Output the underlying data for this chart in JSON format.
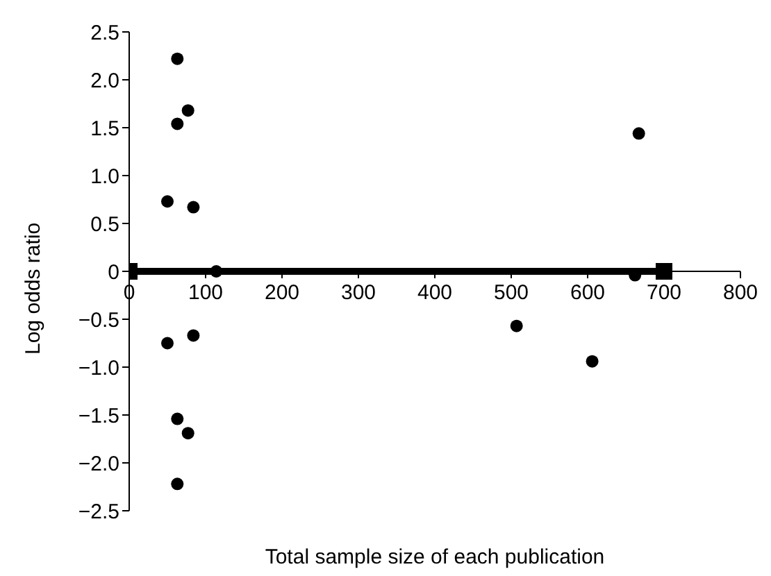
{
  "chart_data": {
    "type": "scatter",
    "xlabel": "Total sample size of each publication",
    "ylabel": "Log odds ratio",
    "xlim": [
      0,
      800
    ],
    "xticks": [
      0,
      100,
      200,
      300,
      400,
      500,
      600,
      700,
      800
    ],
    "ylim": [
      -2.5,
      2.5
    ],
    "yticks": [
      {
        "value": -2.5,
        "label": "−2.5"
      },
      {
        "value": -2,
        "label": "−2.0"
      },
      {
        "value": -1.5,
        "label": "−1.5"
      },
      {
        "value": -1,
        "label": "−1.0"
      },
      {
        "value": -0.5,
        "label": "−0.5"
      },
      0,
      {
        "value": 0.5,
        "label": "0.5"
      },
      {
        "value": 1,
        "label": "1.0"
      },
      {
        "value": 1.5,
        "label": "1.5"
      },
      {
        "value": 2,
        "label": "2.0"
      },
      {
        "value": 2.5,
        "label": "2.5"
      }
    ],
    "series": [
      {
        "type": "scatter",
        "color": "#000000",
        "marker": "circle",
        "x": [
          63,
          77,
          63,
          50,
          84,
          114,
          50,
          84,
          63,
          77,
          63,
          667,
          662,
          507,
          606
        ],
        "values": [
          2.22,
          1.68,
          1.54,
          0.73,
          0.67,
          0,
          -0.75,
          -0.67,
          -1.54,
          -1.69,
          -2.22,
          1.44,
          -0.04,
          -0.57,
          -0.94
        ]
      },
      {
        "type": "line",
        "color": "#000000",
        "marker": "square",
        "x": [
          0,
          700
        ],
        "values": [
          0,
          0
        ]
      }
    ]
  }
}
